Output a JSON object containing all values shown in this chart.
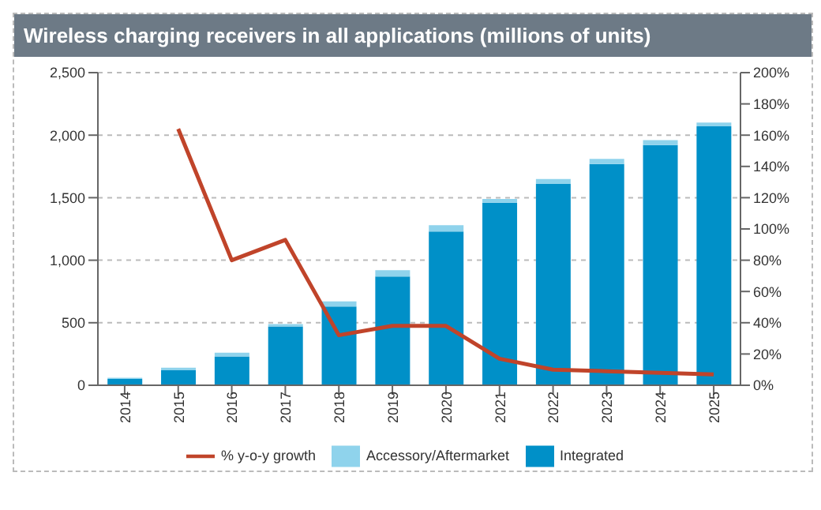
{
  "chart_data": {
    "type": "bar",
    "title": "Wireless charging receivers in all applications (millions of units)",
    "categories": [
      "2014",
      "2015",
      "2016",
      "2017",
      "2018",
      "2019",
      "2020",
      "2021",
      "2022",
      "2023",
      "2024",
      "2025"
    ],
    "stacked": true,
    "series": [
      {
        "name": "Integrated",
        "color": "#0090c8",
        "values": [
          50,
          120,
          230,
          470,
          630,
          870,
          1230,
          1460,
          1610,
          1770,
          1920,
          2070
        ]
      },
      {
        "name": "Accessory/Aftermarket",
        "color": "#8fd3ec",
        "values": [
          10,
          20,
          30,
          20,
          40,
          50,
          50,
          30,
          40,
          40,
          40,
          30
        ]
      },
      {
        "name": "% y-o-y growth",
        "type": "line",
        "axis": "y2",
        "color": "#c0442a",
        "values": [
          null,
          164,
          80,
          93,
          32,
          38,
          38,
          17,
          10,
          9,
          8,
          7
        ]
      }
    ],
    "ylim": [
      0,
      2500
    ],
    "yticks": [
      0,
      {
        "value": 500,
        "label": "500"
      },
      {
        "value": 1000,
        "label": "1,000"
      },
      {
        "value": 1500,
        "label": "1,500"
      },
      {
        "value": 2000,
        "label": "2,000"
      },
      {
        "value": 2500,
        "label": "2,500"
      }
    ],
    "y2lim": [
      0,
      200
    ],
    "y2ticks": [
      {
        "value": 0,
        "label": "0%"
      },
      {
        "value": 20,
        "label": "20%"
      },
      {
        "value": 40,
        "label": "40%"
      },
      {
        "value": 60,
        "label": "60%"
      },
      {
        "value": 80,
        "label": "80%"
      },
      {
        "value": 100,
        "label": "100%"
      },
      {
        "value": 120,
        "label": "120%"
      },
      {
        "value": 140,
        "label": "140%"
      },
      {
        "value": 160,
        "label": "160%"
      },
      {
        "value": 180,
        "label": "180%"
      },
      {
        "value": 200,
        "label": "200%"
      }
    ],
    "grid": "y",
    "legend": "bottom",
    "marker": "none",
    "line_style": "solid"
  }
}
